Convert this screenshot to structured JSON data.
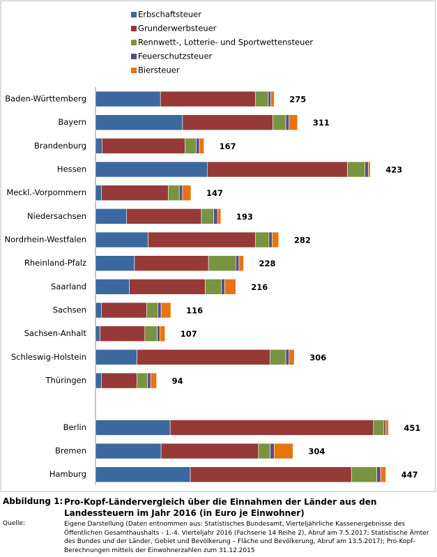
{
  "chart_data": {
    "type": "stacked-bar-horizontal",
    "figure_label": "Abbildung 1:",
    "title": "Pro-Kopf-Ländervergleich über die Einnahmen der Länder aus den Landessteuern im Jahr 2016 (in Euro je Einwohner)",
    "source_label": "Quelle:",
    "source": "Eigene Darstellung (Daten entnommen aus: Statistisches Bundesamt, Vierteljährliche Kassenergebnisse des Öffentlichen Gesamthaushalts - 1.-4. Vierteljahr 2016 (Fachserie 14 Reihe 2), Abruf am 7.5.2017; Statistische Ämter des Bundes und der Länder, Gebiet und Bevölkerung – Fläche und Bevölkerung, Abruf am 13.5.2017); Pro-Kopf-Berechnungen mittels der Einwohnerzahlen zum 31.12.2015",
    "categories": [
      "Baden-Württemberg",
      "Bayern",
      "Brandenburg",
      "Hessen",
      "Meckl.-Vorpommern",
      "Niedersachsen",
      "Nordrhein-Westfalen",
      "Rheinland-Pfalz",
      "Saarland",
      "Sachsen",
      "Sachsen-Anhalt",
      "Schleswig-Holstein",
      "Thüringen",
      null,
      "Berlin",
      "Bremen",
      "Hamburg"
    ],
    "series": [
      {
        "name": "Erbschaftsteuer",
        "color": "#3c68a0",
        "values": [
          100,
          134,
          10,
          172,
          9,
          48,
          81,
          60,
          52,
          9,
          7,
          64,
          9,
          null,
          115,
          101,
          146
        ]
      },
      {
        "name": "Grunderwerbsteuer",
        "color": "#963a37",
        "values": [
          146,
          139,
          128,
          216,
          103,
          115,
          165,
          114,
          117,
          70,
          69,
          205,
          55,
          null,
          313,
          150,
          248
        ]
      },
      {
        "name": "Rennwett-, Lotterie- und Sportwettensteuer",
        "color": "#789440",
        "values": [
          20,
          20,
          17,
          27,
          17,
          19,
          21,
          42,
          25,
          17,
          19,
          24,
          16,
          null,
          16,
          18,
          39
        ]
      },
      {
        "name": "Feuerschutzsteuer",
        "color": "#5d4b86",
        "values": [
          4,
          5,
          5,
          5,
          5,
          6,
          5,
          5,
          5,
          5,
          4,
          5,
          5,
          null,
          3,
          6,
          6
        ]
      },
      {
        "name": "Biersteuer",
        "color": "#e8740f",
        "values": [
          5,
          13,
          7,
          3,
          13,
          5,
          10,
          7,
          17,
          15,
          8,
          8,
          9,
          null,
          4,
          29,
          8
        ]
      }
    ],
    "totals": [
      275,
      311,
      167,
      423,
      147,
      193,
      282,
      228,
      216,
      116,
      107,
      306,
      94,
      null,
      451,
      304,
      447
    ],
    "xlim": [
      0,
      500
    ]
  }
}
